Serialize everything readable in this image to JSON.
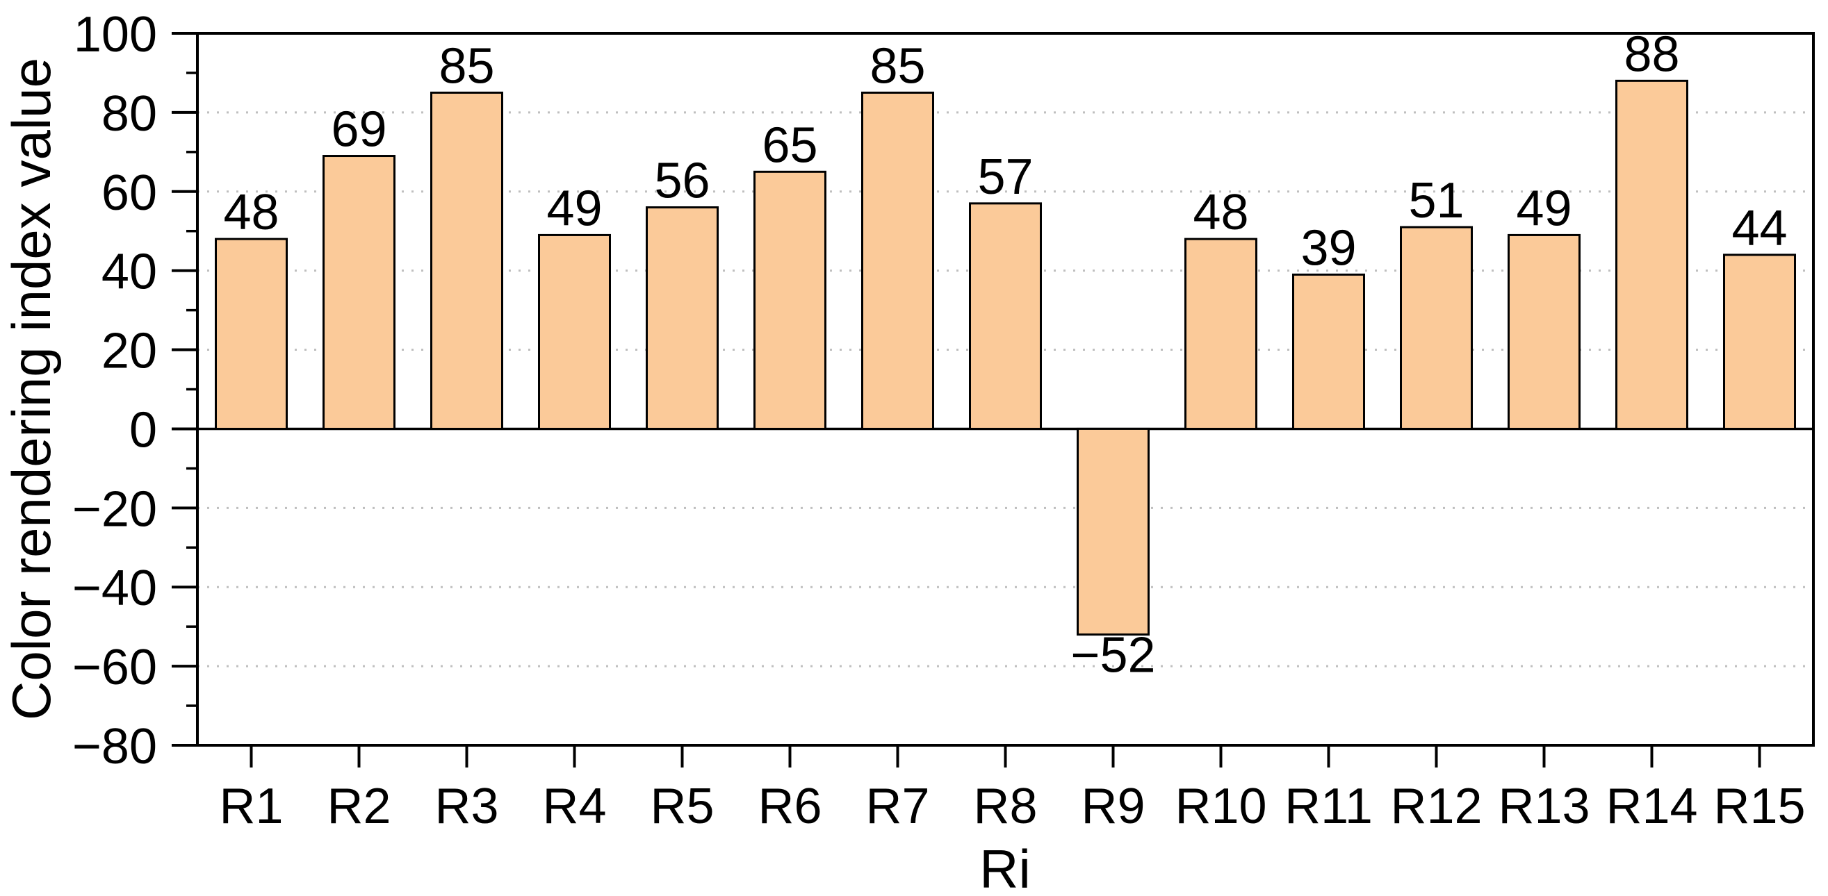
{
  "chart_data": {
    "type": "bar",
    "title": "",
    "categories": [
      "R1",
      "R2",
      "R3",
      "R4",
      "R5",
      "R6",
      "R7",
      "R8",
      "R9",
      "R10",
      "R11",
      "R12",
      "R13",
      "R14",
      "R15"
    ],
    "values": [
      48,
      69,
      85,
      49,
      56,
      65,
      85,
      57,
      -52,
      48,
      39,
      51,
      49,
      88,
      44
    ],
    "value_labels": [
      "48",
      "69",
      "85",
      "49",
      "56",
      "65",
      "85",
      "57",
      "−52",
      "48",
      "39",
      "51",
      "49",
      "88",
      "44"
    ],
    "xlabel": "Ri",
    "ylabel": "Color rendering index value",
    "ylim": [
      -80,
      100
    ],
    "y_major_step": 20,
    "y_minor_step": 10,
    "y_tick_labels": [
      "100",
      "80",
      "60",
      "40",
      "20",
      "0",
      "−20",
      "−40",
      "−60",
      "−80"
    ],
    "grid": {
      "horizontal_major": true,
      "style": "dotted",
      "zero_line": "solid",
      "gridline_values": [
        80,
        60,
        40,
        20,
        -20,
        -40,
        -60
      ]
    },
    "legend_position": "none"
  },
  "style": {
    "bar_fill": "#FBCA99",
    "bar_border": "#000000",
    "grid_color": "#BFBFBF",
    "axis_color": "#000000",
    "text_color": "#000000",
    "background": "#FFFFFF"
  }
}
